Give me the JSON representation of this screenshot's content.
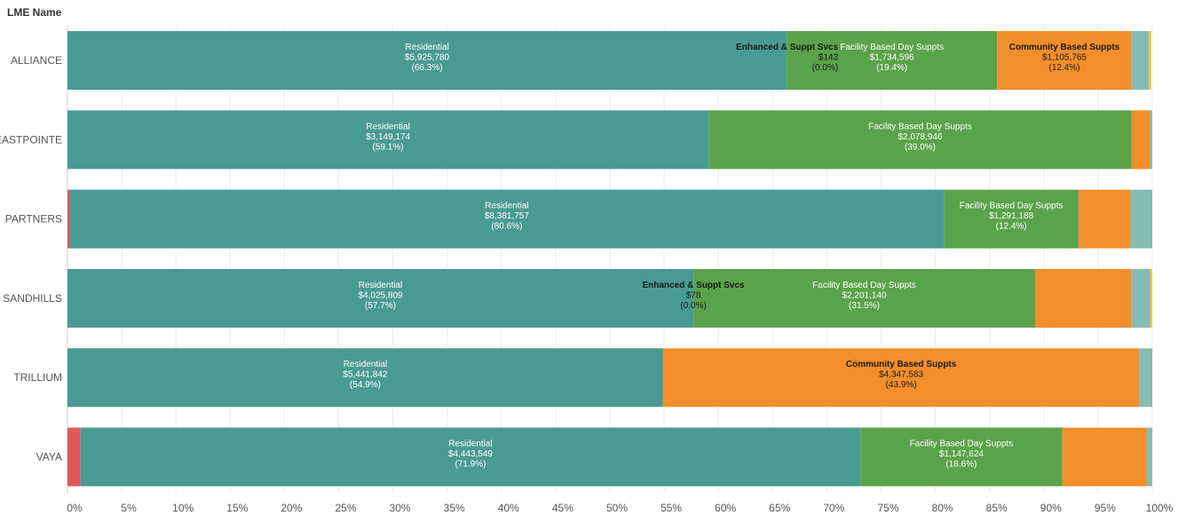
{
  "header": {
    "dim_label": "LME Name"
  },
  "colors": {
    "Residential": "#4a9a94",
    "Enhanced & Suppt Svcs": "#4a9a94",
    "Facility Based Day Suppts": "#5aa34a",
    "Community Based Suppts": "#f28e2b",
    "Other Light": "#86bcb6",
    "Other Red": "#e15759",
    "Thin Yellow": "#edc948"
  },
  "chart_data": {
    "type": "bar",
    "orientation": "horizontal",
    "stacked": "percent",
    "xlim": [
      0,
      100
    ],
    "xticks": [
      "0%",
      "5%",
      "10%",
      "15%",
      "20%",
      "25%",
      "30%",
      "35%",
      "40%",
      "45%",
      "50%",
      "55%",
      "60%",
      "65%",
      "70%",
      "75%",
      "80%",
      "85%",
      "90%",
      "95%",
      "100%"
    ],
    "grid": true,
    "rows": [
      {
        "name": "ALLIANCE",
        "segments": [
          {
            "category": "Residential",
            "percent": 66.3,
            "amount": "$5,925,780",
            "pct_label": "(66.3%)",
            "label": true,
            "dark": false
          },
          {
            "category": "Enhanced & Suppt Svcs",
            "percent": 0.0,
            "amount": "$143",
            "pct_label": "(0.0%)",
            "label": true,
            "dark": true,
            "anchor": "end"
          },
          {
            "category": "Facility Based Day Suppts",
            "percent": 19.4,
            "amount": "$1,734,596",
            "pct_label": "(19.4%)",
            "label": true,
            "dark": false
          },
          {
            "category": "Community Based Suppts",
            "percent": 12.4,
            "amount": "$1,105,765",
            "pct_label": "(12.4%)",
            "label": true,
            "dark": true
          },
          {
            "category": "Other Light",
            "percent": 1.6,
            "label": false
          },
          {
            "category": "Thin Yellow",
            "percent": 0.2,
            "label": false
          }
        ]
      },
      {
        "name": "EASTPOINTE",
        "segments": [
          {
            "category": "Residential",
            "percent": 59.1,
            "amount": "$3,149,174",
            "pct_label": "(59.1%)",
            "label": true,
            "dark": false
          },
          {
            "category": "Facility Based Day Suppts",
            "percent": 39.0,
            "amount": "$2,078,946",
            "pct_label": "(39.0%)",
            "label": true,
            "dark": false
          },
          {
            "category": "Community Based Suppts",
            "percent": 1.7,
            "label": false
          },
          {
            "category": "Other Light",
            "percent": 0.2,
            "label": false
          }
        ]
      },
      {
        "name": "PARTNERS",
        "segments": [
          {
            "category": "Other Red",
            "percent": 0.2,
            "label": false
          },
          {
            "category": "Residential",
            "percent": 80.6,
            "amount": "$8,381,757",
            "pct_label": "(80.6%)",
            "label": true,
            "dark": false
          },
          {
            "category": "Facility Based Day Suppts",
            "percent": 12.4,
            "amount": "$1,291,188",
            "pct_label": "(12.4%)",
            "label": true,
            "dark": false
          },
          {
            "category": "Community Based Suppts",
            "percent": 4.8,
            "label": false
          },
          {
            "category": "Other Light",
            "percent": 2.0,
            "label": false
          }
        ]
      },
      {
        "name": "SANDHILLS",
        "segments": [
          {
            "category": "Residential",
            "percent": 57.7,
            "amount": "$4,025,809",
            "pct_label": "(57.7%)",
            "label": true,
            "dark": false
          },
          {
            "category": "Enhanced & Suppt Svcs",
            "percent": 0.0,
            "amount": "$78",
            "pct_label": "(0.0%)",
            "label": true,
            "dark": true
          },
          {
            "category": "Facility Based Day Suppts",
            "percent": 31.5,
            "amount": "$2,201,140",
            "pct_label": "(31.5%)",
            "label": true,
            "dark": false
          },
          {
            "category": "Community Based Suppts",
            "percent": 8.9,
            "label": false
          },
          {
            "category": "Other Light",
            "percent": 1.7,
            "label": false
          },
          {
            "category": "Thin Yellow",
            "percent": 0.2,
            "label": false
          }
        ]
      },
      {
        "name": "TRILLIUM",
        "segments": [
          {
            "category": "Residential",
            "percent": 54.9,
            "amount": "$5,441,842",
            "pct_label": "(54.9%)",
            "label": true,
            "dark": false
          },
          {
            "category": "Community Based Suppts",
            "percent": 43.9,
            "amount": "$4,347,583",
            "pct_label": "(43.9%)",
            "label": true,
            "dark": true
          },
          {
            "category": "Other Light",
            "percent": 1.2,
            "label": false
          }
        ]
      },
      {
        "name": "VAYA",
        "segments": [
          {
            "category": "Other Red",
            "percent": 1.2,
            "label": false
          },
          {
            "category": "Residential",
            "percent": 71.9,
            "amount": "$4,443,549",
            "pct_label": "(71.9%)",
            "label": true,
            "dark": false
          },
          {
            "category": "Facility Based Day Suppts",
            "percent": 18.6,
            "amount": "$1,147,624",
            "pct_label": "(18.6%)",
            "label": true,
            "dark": false
          },
          {
            "category": "Community Based Suppts",
            "percent": 7.8,
            "label": false
          },
          {
            "category": "Other Light",
            "percent": 0.5,
            "label": false
          }
        ]
      }
    ]
  }
}
